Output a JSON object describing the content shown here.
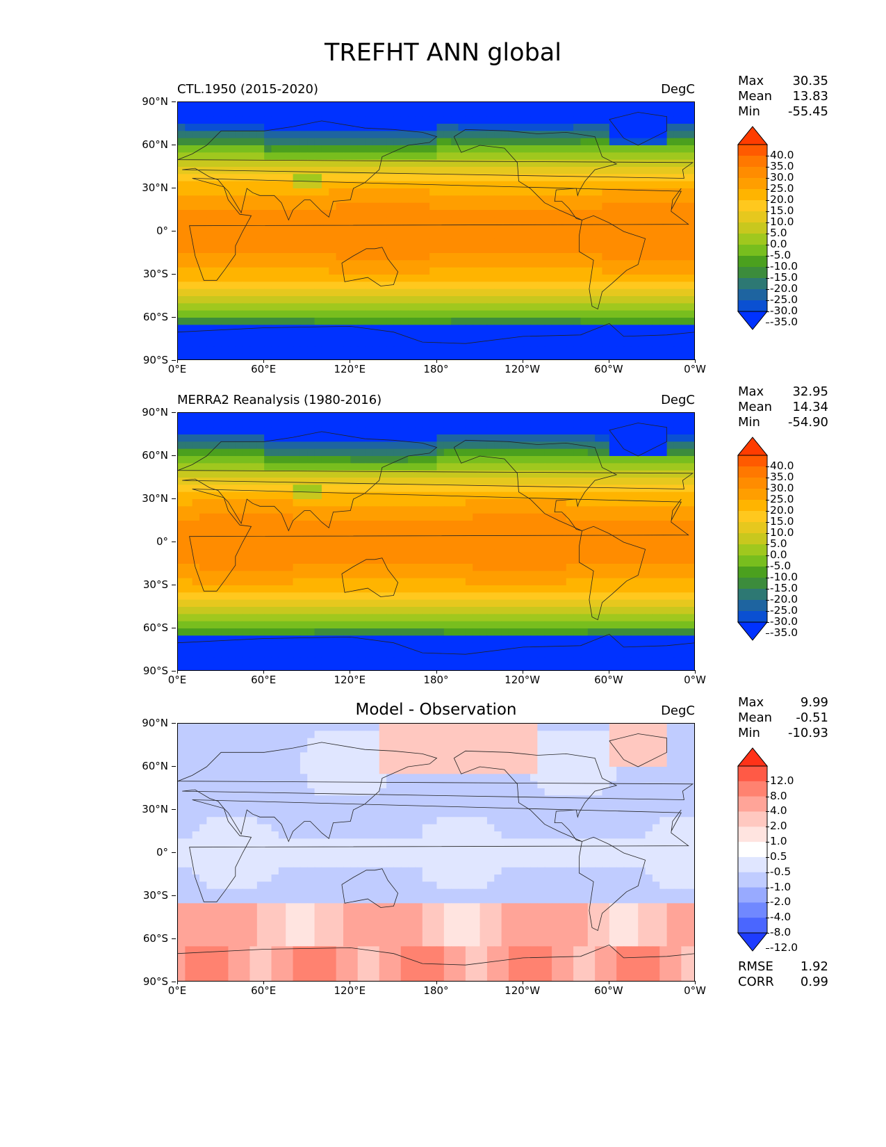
{
  "figure_title": "TREFHT ANN global",
  "lat_ticks": [
    "90°N",
    "60°N",
    "30°N",
    "0°",
    "30°S",
    "60°S",
    "90°S"
  ],
  "lon_ticks": [
    "0°E",
    "60°E",
    "120°E",
    "180°",
    "120°W",
    "60°W",
    "0°W"
  ],
  "panels": [
    {
      "title": "CTL.1950 (2015-2020)",
      "units": "DegC",
      "stats": {
        "max_label": "Max",
        "max": "30.35",
        "mean_label": "Mean",
        "mean": "13.83",
        "min_label": "Min",
        "min": "-55.45"
      },
      "colorbar": {
        "levels": [
          "40.0",
          "35.0",
          "30.0",
          "25.0",
          "20.0",
          "15.0",
          "10.0",
          "5.0",
          "0.0",
          "-5.0",
          "-10.0",
          "-15.0",
          "-20.0",
          "-25.0",
          "-30.0",
          "-35.0"
        ],
        "colors": [
          "#ff3c00",
          "#ff5a00",
          "#ff7800",
          "#ff8c00",
          "#ff9e00",
          "#ffb400",
          "#ffc81e",
          "#e6c81e",
          "#c8c81e",
          "#a0c81e",
          "#78be1e",
          "#4ba01e",
          "#3c8c3c",
          "#2d7873",
          "#1e64a0",
          "#0a50d2",
          "#0032ff"
        ]
      }
    },
    {
      "title": "MERRA2 Reanalysis (1980-2016)",
      "units": "DegC",
      "stats": {
        "max_label": "Max",
        "max": "32.95",
        "mean_label": "Mean",
        "mean": "14.34",
        "min_label": "Min",
        "min": "-54.90"
      },
      "colorbar": {
        "levels": [
          "40.0",
          "35.0",
          "30.0",
          "25.0",
          "20.0",
          "15.0",
          "10.0",
          "5.0",
          "0.0",
          "-5.0",
          "-10.0",
          "-15.0",
          "-20.0",
          "-25.0",
          "-30.0",
          "-35.0"
        ],
        "colors": [
          "#ff3c00",
          "#ff5a00",
          "#ff7800",
          "#ff8c00",
          "#ff9e00",
          "#ffb400",
          "#ffc81e",
          "#e6c81e",
          "#c8c81e",
          "#a0c81e",
          "#78be1e",
          "#4ba01e",
          "#3c8c3c",
          "#2d7873",
          "#1e64a0",
          "#0a50d2",
          "#0032ff"
        ]
      }
    },
    {
      "title": "Model - Observation",
      "units": "DegC",
      "stats": {
        "max_label": "Max",
        "max": "9.99",
        "mean_label": "Mean",
        "mean": "-0.51",
        "min_label": "Min",
        "min": "-10.93"
      },
      "colorbar": {
        "levels": [
          "12.0",
          "8.0",
          "4.0",
          "2.0",
          "1.0",
          "0.5",
          "-0.5",
          "-1.0",
          "-2.0",
          "-4.0",
          "-8.0",
          "-12.0"
        ],
        "colors": [
          "#ff3218",
          "#ff5a46",
          "#ff8270",
          "#ffa498",
          "#ffc8c0",
          "#ffe4e0",
          "#ffffff",
          "#e0e6ff",
          "#c0ccff",
          "#98aaff",
          "#7088ff",
          "#4a66ff",
          "#1e3cff"
        ]
      },
      "rmse_label": "RMSE",
      "rmse": "1.92",
      "corr_label": "CORR",
      "corr": "0.99"
    }
  ]
}
